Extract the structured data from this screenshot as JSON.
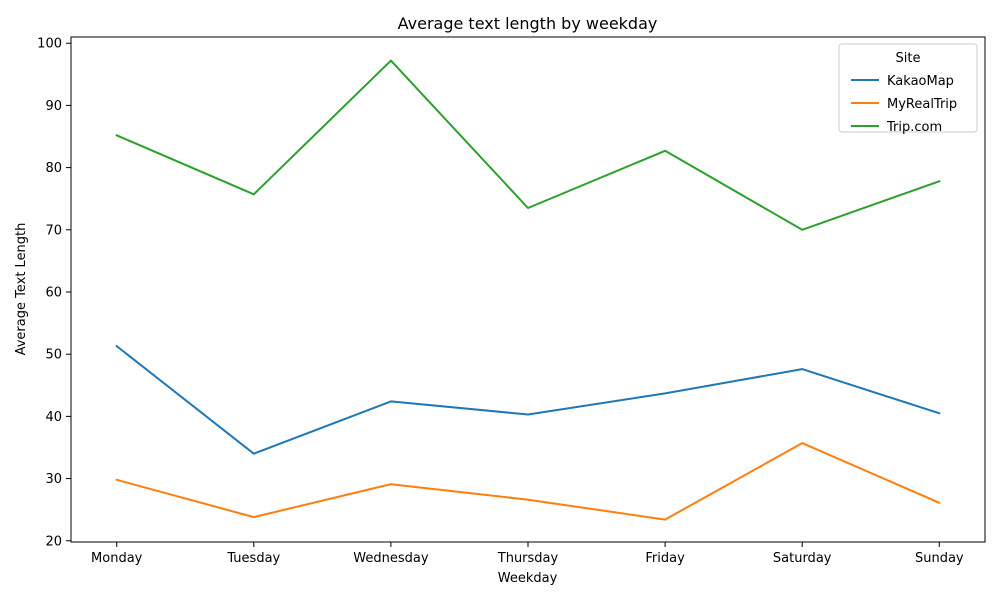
{
  "chart_data": {
    "type": "line",
    "title": "Average text length by weekday",
    "xlabel": "Weekday",
    "ylabel": "Average Text Length",
    "categories": [
      "Monday",
      "Tuesday",
      "Wednesday",
      "Thursday",
      "Friday",
      "Saturday",
      "Sunday"
    ],
    "ylim": [
      19.8,
      101.0
    ],
    "yticks": [
      20,
      30,
      40,
      50,
      60,
      70,
      80,
      90,
      100
    ],
    "grid": false,
    "legend": {
      "title": "Site",
      "placement": "top-right"
    },
    "series": [
      {
        "name": "KakaoMap",
        "color": "#1f77b4",
        "values": [
          51.3,
          34.0,
          42.4,
          40.3,
          43.7,
          47.6,
          40.5
        ]
      },
      {
        "name": "MyRealTrip",
        "color": "#ff7f0e",
        "values": [
          29.8,
          23.8,
          29.1,
          26.6,
          23.4,
          35.7,
          26.1
        ]
      },
      {
        "name": "Trip.com",
        "color": "#2ca02c",
        "values": [
          85.2,
          75.7,
          97.2,
          73.5,
          82.7,
          70.0,
          77.8
        ]
      }
    ]
  }
}
